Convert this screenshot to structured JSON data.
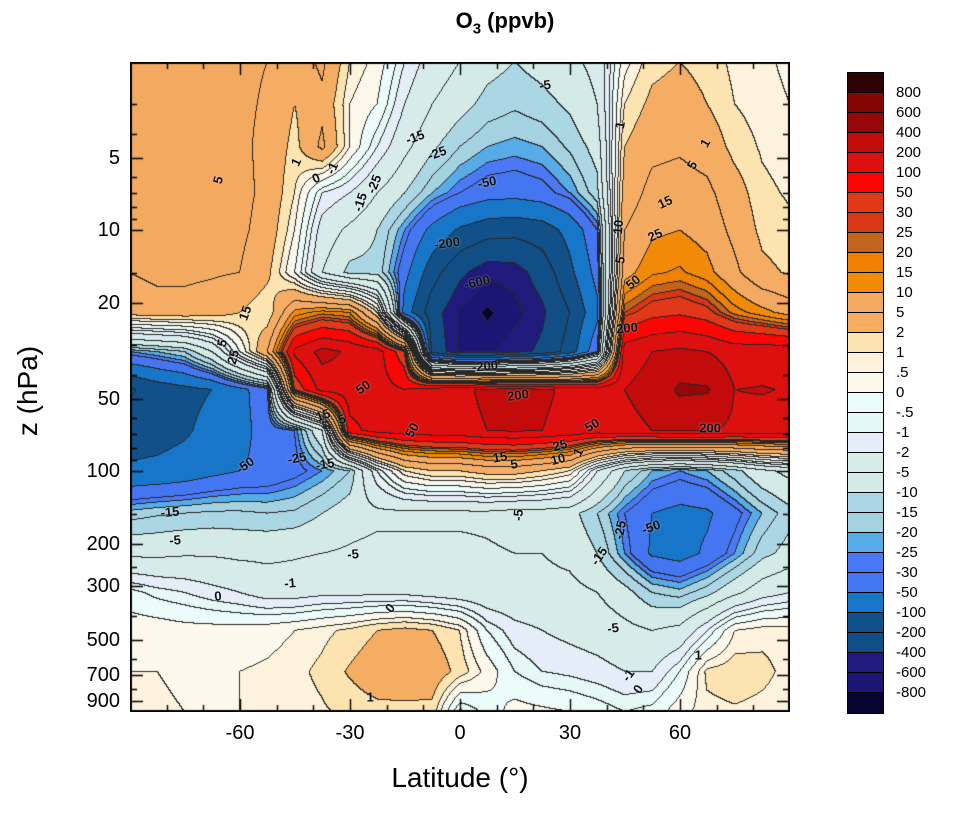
{
  "title": {
    "element": "O",
    "sub": "3",
    "rest": " (ppvb)"
  },
  "axes": {
    "x": {
      "label": "Latitude (°)",
      "min": -90,
      "max": 90,
      "major_ticks": [
        -60,
        -30,
        0,
        30,
        60
      ],
      "minor_step": 10
    },
    "y": {
      "label": "z (hPa)",
      "min": 2,
      "max": 1000,
      "scale": "log",
      "labeled_ticks": [
        5,
        10,
        20,
        50,
        100,
        200,
        300,
        500,
        700,
        900
      ],
      "minor_ticks": [
        3,
        4,
        6,
        7,
        8,
        9,
        15,
        30,
        40,
        60,
        70,
        80,
        90,
        150,
        250,
        400,
        600,
        800
      ]
    }
  },
  "colorbar": {
    "labels_top_to_bottom": [
      "800",
      "600",
      "400",
      "200",
      "100",
      "50",
      "30",
      "25",
      "20",
      "15",
      "10",
      "5",
      "2",
      "1",
      ".5",
      "0",
      "-.5",
      "-1",
      "-2",
      "-5",
      "-10",
      "-15",
      "-20",
      "-25",
      "-30",
      "-50",
      "-100",
      "-200",
      "-400",
      "-600",
      "-800"
    ]
  },
  "chart_data": {
    "type": "contour",
    "title": "O3 (ppvb)",
    "xlabel": "Latitude (deg)",
    "ylabel": "z (hPa)",
    "x_axis_range": [
      -90,
      90
    ],
    "y_axis_range_hPa": [
      2,
      1000
    ],
    "y_scale": "log",
    "grid": false,
    "levels": [
      -800,
      -600,
      -400,
      -200,
      -100,
      -50,
      -30,
      -25,
      -20,
      -15,
      -10,
      -5,
      -2,
      -1,
      -0.5,
      0,
      0.5,
      1,
      2,
      5,
      10,
      15,
      20,
      25,
      30,
      50,
      100,
      200,
      400,
      600,
      800
    ],
    "band_colors_low_to_high": [
      "#06042f",
      "#1b1573",
      "#201a7d",
      "#114e85",
      "#125089",
      "#1876c9",
      "#4576f2",
      "#4b79f6",
      "#57abe7",
      "#a5d2e0",
      "#abd6e3",
      "#d3eae7",
      "#d7ecea",
      "#e4edf8",
      "#e6f8f6",
      "#ebfcfa",
      "#fdf8ec",
      "#fdf3dd",
      "#fce3af",
      "#f5ad64",
      "#f3a95f",
      "#f18b07",
      "#ef8000",
      "#c4641c",
      "#d93615",
      "#e03818",
      "#fb0505",
      "#dd0f0f",
      "#c30b0b",
      "#940808",
      "#850505",
      "#2e0303"
    ],
    "x_lats": [
      -90,
      -82.5,
      -75,
      -67.5,
      -60,
      -52.5,
      -45,
      -37.5,
      -30,
      -22.5,
      -15,
      -7.5,
      0,
      7.5,
      15,
      22.5,
      30,
      37.5,
      45,
      52.5,
      60,
      67.5,
      75,
      82.5,
      90
    ],
    "y_pressures_hPa": [
      2,
      3,
      4.5,
      7,
      10,
      15,
      22,
      32,
      46,
      68,
      100,
      150,
      220,
      320,
      460,
      680,
      1000
    ],
    "values": [
      [
        6,
        7,
        7,
        7,
        6,
        5,
        3,
        6,
        1,
        0.3,
        -1,
        -3,
        -5,
        -8,
        -10,
        -8,
        -6,
        -4,
        0.3,
        1.5,
        2,
        1.5,
        0.8,
        0.6,
        0.4
      ],
      [
        6,
        7,
        7,
        7,
        6,
        4.5,
        2,
        4,
        0.5,
        0,
        -2,
        -5,
        -8,
        -12,
        -14,
        -12,
        -9,
        -5,
        1,
        2.5,
        3,
        2,
        1,
        0.7,
        0.5
      ],
      [
        6,
        7,
        7.5,
        7,
        6,
        4,
        1.5,
        6,
        0.5,
        -1,
        -4,
        -9,
        -15,
        -20,
        -22,
        -20,
        -14,
        -8,
        2,
        4,
        4.5,
        3.5,
        1.5,
        0.9,
        0.7
      ],
      [
        6,
        7,
        7.5,
        7,
        6.5,
        4,
        1,
        -1,
        -2,
        -5,
        -10,
        -20,
        -30,
        -38,
        -40,
        -35,
        -25,
        -12,
        3,
        6.5,
        7,
        6,
        3,
        1.2,
        0.9
      ],
      [
        5.5,
        6.5,
        7,
        6.5,
        6,
        3.5,
        0.5,
        -3,
        -6,
        -10,
        -25,
        -60,
        -110,
        -150,
        -160,
        -140,
        -80,
        -30,
        5,
        9,
        10,
        8,
        4,
        1.6,
        1.2
      ],
      [
        5,
        6,
        6,
        5.5,
        5,
        2.5,
        0,
        -5,
        -12,
        -12,
        -40,
        -150,
        -350,
        -560,
        -520,
        -300,
        -120,
        -40,
        8,
        14,
        16,
        12,
        6,
        2.5,
        1.8
      ],
      [
        3,
        3.5,
        3.5,
        3,
        2,
        1,
        12,
        18,
        15,
        1,
        -70,
        -300,
        -640,
        -850,
        -680,
        -450,
        -200,
        -60,
        25,
        40,
        45,
        35,
        18,
        12,
        8
      ],
      [
        -25,
        -20,
        -15,
        -5,
        0,
        5,
        120,
        250,
        180,
        140,
        30,
        -250,
        -620,
        -640,
        -500,
        -350,
        -150,
        -30,
        150,
        200,
        230,
        200,
        150,
        160,
        150
      ],
      [
        -220,
        -150,
        -120,
        -100,
        -60,
        -35,
        30,
        130,
        150,
        130,
        100,
        140,
        180,
        220,
        250,
        220,
        180,
        160,
        200,
        250,
        450,
        430,
        200,
        205,
        195
      ],
      [
        -140,
        -130,
        -110,
        -80,
        -60,
        -40,
        -30,
        -5,
        80,
        130,
        150,
        160,
        170,
        200,
        220,
        200,
        170,
        150,
        170,
        200,
        220,
        210,
        180,
        170,
        160
      ],
      [
        -90,
        -85,
        -75,
        -60,
        -50,
        -45,
        -35,
        -25,
        -15,
        -1,
        1,
        2,
        2,
        3,
        3,
        2,
        1,
        -2,
        -10,
        -20,
        -25,
        -20,
        -12,
        -6,
        -4
      ],
      [
        -18,
        -16,
        -15,
        -14,
        -14,
        -15,
        -14,
        -10,
        -7,
        -6,
        -6,
        -6,
        -6,
        -6,
        -7,
        -7,
        -8,
        -15,
        -30,
        -50,
        -60,
        -55,
        -35,
        -20,
        -12
      ],
      [
        -6,
        -6,
        -5.5,
        -5.5,
        -6,
        -6,
        -5.5,
        -5,
        -4.5,
        -4,
        -4,
        -4,
        -4,
        -4.5,
        -5,
        -5,
        -6,
        -10,
        -25,
        -55,
        -65,
        -45,
        -25,
        -12,
        -8
      ],
      [
        -0.3,
        -0.7,
        -1,
        -1.5,
        -2,
        -3,
        -3,
        -2.5,
        -2.5,
        -2.5,
        -2.5,
        -3,
        -3.5,
        -4,
        -4,
        -4,
        -4,
        -5,
        -8,
        -15,
        -18,
        -12,
        -6,
        -3,
        -2
      ],
      [
        0.3,
        0.3,
        0.2,
        0.2,
        0.2,
        0.3,
        0.5,
        0.8,
        1.2,
        2,
        2.5,
        2,
        1,
        -0.5,
        -1.5,
        -2,
        -2.5,
        -3,
        -4,
        -5,
        -4,
        -1,
        0.5,
        0.8,
        0.8
      ],
      [
        0.5,
        0.5,
        0.4,
        0.4,
        0.5,
        0.6,
        0.8,
        1.2,
        2.2,
        3.5,
        4,
        3.5,
        1.5,
        0.3,
        -0.5,
        -1,
        -1.2,
        -1.5,
        -2,
        -2,
        -0.5,
        1.2,
        1.5,
        1.2,
        0.8
      ],
      [
        0.6,
        0.6,
        0.5,
        0.5,
        0.5,
        0.6,
        0.7,
        0.9,
        1.2,
        1.5,
        1.5,
        1.5,
        -1.2,
        -0.3,
        0.2,
        0.1,
        0,
        -0.2,
        -0.5,
        -0.3,
        0.3,
        0.8,
        0.9,
        0.8,
        0.7
      ]
    ],
    "contour_labels": [
      {
        "text": "5",
        "x": 13.3,
        "y": 18.2,
        "rot": -75
      },
      {
        "text": "1",
        "x": 25.2,
        "y": 15.4,
        "rot": -65
      },
      {
        "text": "0",
        "x": 28.2,
        "y": 17.8,
        "rot": -25
      },
      {
        "text": "-1",
        "x": 30.6,
        "y": 16.3,
        "rot": -65
      },
      {
        "text": "-15",
        "x": 43.2,
        "y": 11.5,
        "rot": -20
      },
      {
        "text": "-25",
        "x": 46.5,
        "y": 14.0,
        "rot": -20
      },
      {
        "text": "-5",
        "x": 62.9,
        "y": 3.5,
        "rot": -8
      },
      {
        "text": "-15",
        "x": 34.8,
        "y": 21.5,
        "rot": -72
      },
      {
        "text": "-25",
        "x": 36.9,
        "y": 18.8,
        "rot": -68
      },
      {
        "text": "-50",
        "x": 54.1,
        "y": 18.5,
        "rot": -12
      },
      {
        "text": "-200",
        "x": 48.0,
        "y": 27.8,
        "rot": -8
      },
      {
        "text": "-600",
        "x": 52.5,
        "y": 33.8,
        "rot": -12
      },
      {
        "text": "-200",
        "x": 53.8,
        "y": 46.8,
        "rot": -5
      },
      {
        "text": "200",
        "x": 75.3,
        "y": 40.9,
        "rot": -5
      },
      {
        "text": "200",
        "x": 58.8,
        "y": 51.3,
        "rot": -8
      },
      {
        "text": "200",
        "x": 87.9,
        "y": 56.3,
        "rot": 0
      },
      {
        "text": "50",
        "x": 76.2,
        "y": 33.8,
        "rot": -40
      },
      {
        "text": "50",
        "x": 70.0,
        "y": 55.8,
        "rot": -30
      },
      {
        "text": "50",
        "x": 42.7,
        "y": 56.6,
        "rot": -60
      },
      {
        "text": "50",
        "x": 35.3,
        "y": 50.0,
        "rot": -35
      },
      {
        "text": "25",
        "x": 15.6,
        "y": 45.4,
        "rot": -75
      },
      {
        "text": "15",
        "x": 17.4,
        "y": 38.6,
        "rot": -70
      },
      {
        "text": "5",
        "x": 13.9,
        "y": 43.2,
        "rot": -75
      },
      {
        "text": "15",
        "x": 81.1,
        "y": 21.5,
        "rot": -25
      },
      {
        "text": "25",
        "x": 79.5,
        "y": 26.6,
        "rot": -25
      },
      {
        "text": "5",
        "x": 85.2,
        "y": 15.8,
        "rot": -60
      },
      {
        "text": "1",
        "x": 87.1,
        "y": 12.5,
        "rot": -60
      },
      {
        "text": "1",
        "x": 74.2,
        "y": 9.7,
        "rot": -80
      },
      {
        "text": "10",
        "x": 73.9,
        "y": 25.4,
        "rot": -85
      },
      {
        "text": "5",
        "x": 74.2,
        "y": 30.5,
        "rot": -80
      },
      {
        "text": "15",
        "x": 56.1,
        "y": 60.8,
        "rot": -10
      },
      {
        "text": "5",
        "x": 58.2,
        "y": 61.8,
        "rot": -10
      },
      {
        "text": "25",
        "x": 65.2,
        "y": 58.9,
        "rot": -15
      },
      {
        "text": "10",
        "x": 64.8,
        "y": 61.0,
        "rot": -15
      },
      {
        "text": "1",
        "x": 67.9,
        "y": 60.0,
        "rot": -60
      },
      {
        "text": "-5",
        "x": 58.8,
        "y": 69.7,
        "rot": -85
      },
      {
        "text": "-25",
        "x": 74.2,
        "y": 72.0,
        "rot": -80
      },
      {
        "text": "-15",
        "x": 71.0,
        "y": 76.0,
        "rot": -55
      },
      {
        "text": "-50",
        "x": 79.0,
        "y": 71.5,
        "rot": -20
      },
      {
        "text": "-15",
        "x": 6.1,
        "y": 69.2,
        "rot": -5
      },
      {
        "text": "-5",
        "x": 6.8,
        "y": 73.5,
        "rot": -5
      },
      {
        "text": "-5",
        "x": 33.8,
        "y": 75.7,
        "rot": -5
      },
      {
        "text": "-1",
        "x": 24.2,
        "y": 80.2,
        "rot": -5
      },
      {
        "text": "0",
        "x": 13.3,
        "y": 82.2,
        "rot": -5
      },
      {
        "text": "0",
        "x": 39.4,
        "y": 84.0,
        "rot": -50
      },
      {
        "text": "-5",
        "x": 73.2,
        "y": 87.1,
        "rot": -8
      },
      {
        "text": "1",
        "x": 36.4,
        "y": 97.7,
        "rot": 0
      },
      {
        "text": "1",
        "x": 86.1,
        "y": 91.2,
        "rot": 0
      },
      {
        "text": "-1",
        "x": 75.5,
        "y": 94.3,
        "rot": -55
      },
      {
        "text": "0",
        "x": 77.0,
        "y": 96.5,
        "rot": -55
      },
      {
        "text": "-50",
        "x": 17.4,
        "y": 62.0,
        "rot": -35
      },
      {
        "text": "-25",
        "x": 25.3,
        "y": 60.9,
        "rot": -10
      },
      {
        "text": "-15",
        "x": 29.5,
        "y": 61.8,
        "rot": -10
      },
      {
        "text": "15",
        "x": 29.2,
        "y": 54.3,
        "rot": -20
      },
      {
        "text": "5",
        "x": 32.1,
        "y": 54.9,
        "rot": -20
      }
    ]
  }
}
